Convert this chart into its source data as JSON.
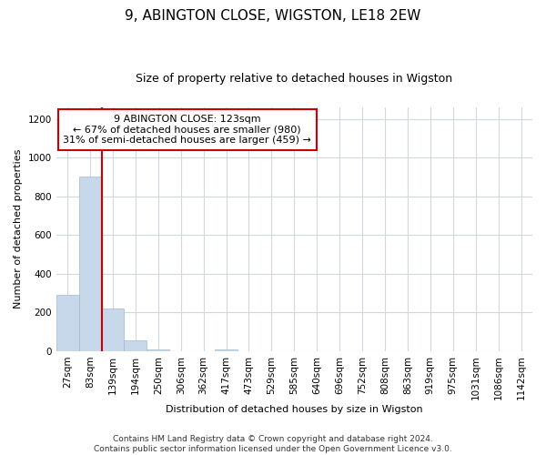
{
  "title_line1": "9, ABINGTON CLOSE, WIGSTON, LE18 2EW",
  "title_line2": "Size of property relative to detached houses in Wigston",
  "xlabel": "Distribution of detached houses by size in Wigston",
  "ylabel": "Number of detached properties",
  "bar_color": "#c8d8eb",
  "bar_edge_color": "#a0b8cc",
  "categories": [
    "27sqm",
    "83sqm",
    "139sqm",
    "194sqm",
    "250sqm",
    "306sqm",
    "362sqm",
    "417sqm",
    "473sqm",
    "529sqm",
    "585sqm",
    "640sqm",
    "696sqm",
    "752sqm",
    "808sqm",
    "863sqm",
    "919sqm",
    "975sqm",
    "1031sqm",
    "1086sqm",
    "1142sqm"
  ],
  "values": [
    290,
    900,
    220,
    55,
    10,
    0,
    0,
    10,
    0,
    0,
    0,
    0,
    0,
    0,
    0,
    0,
    0,
    0,
    0,
    0,
    0
  ],
  "ylim": [
    0,
    1260
  ],
  "yticks": [
    0,
    200,
    400,
    600,
    800,
    1000,
    1200
  ],
  "property_line_x": 1.5,
  "property_line_color": "#cc0000",
  "annotation_text_line1": "9 ABINGTON CLOSE: 123sqm",
  "annotation_text_line2": "← 67% of detached houses are smaller (980)",
  "annotation_text_line3": "31% of semi-detached houses are larger (459) →",
  "footer_line1": "Contains HM Land Registry data © Crown copyright and database right 2024.",
  "footer_line2": "Contains public sector information licensed under the Open Government Licence v3.0.",
  "background_color": "#ffffff",
  "plot_bg_color": "#ffffff",
  "grid_color": "#d0d8e0",
  "title1_fontsize": 11,
  "title2_fontsize": 9,
  "xlabel_fontsize": 8,
  "ylabel_fontsize": 8,
  "tick_fontsize": 7.5,
  "footer_fontsize": 6.5
}
